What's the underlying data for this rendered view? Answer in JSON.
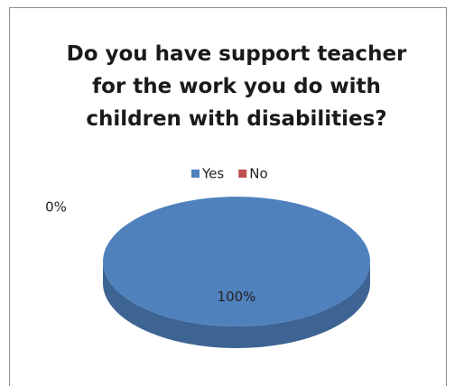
{
  "chart_data": {
    "type": "pie",
    "title": "Do you have support teacher for the work you do with children with disabilities?",
    "categories": [
      "Yes",
      "No"
    ],
    "values": [
      100,
      0
    ],
    "value_labels": [
      "100%",
      "0%"
    ],
    "colors": [
      "#4f81bd",
      "#c0504d"
    ],
    "legend": "top"
  }
}
